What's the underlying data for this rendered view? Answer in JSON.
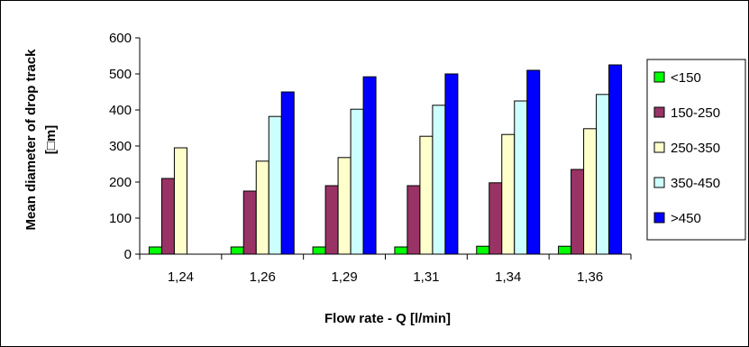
{
  "chart_data": {
    "type": "bar",
    "title": "",
    "xlabel": "Flow rate - Q [l/min]",
    "ylabel_line1": "Mean diameter of drop track",
    "ylabel_line2": "[□m]",
    "ylim": [
      0,
      600
    ],
    "yticks": [
      0,
      100,
      200,
      300,
      400,
      500,
      600
    ],
    "ytick_labels": [
      "0",
      "100",
      "200",
      "300",
      "400",
      "500",
      "600"
    ],
    "grid": false,
    "legend_position": "right",
    "categories": [
      "1,24",
      "1,26",
      "1,29",
      "1,31",
      "1,34",
      "1,36"
    ],
    "series": [
      {
        "name": "<150",
        "color": "#00ff00",
        "values": [
          20,
          20,
          20,
          20,
          22,
          22
        ]
      },
      {
        "name": "150-250",
        "color": "#993366",
        "values": [
          210,
          175,
          190,
          190,
          198,
          235
        ]
      },
      {
        "name": "250-350",
        "color": "#ffffcc",
        "values": [
          295,
          258,
          268,
          327,
          332,
          348
        ]
      },
      {
        "name": "350-450",
        "color": "#ccffff",
        "values": [
          null,
          382,
          402,
          413,
          425,
          443
        ]
      },
      {
        "name": ">450",
        "color": "#0000ff",
        "values": [
          null,
          450,
          492,
          500,
          510,
          525
        ]
      }
    ]
  }
}
